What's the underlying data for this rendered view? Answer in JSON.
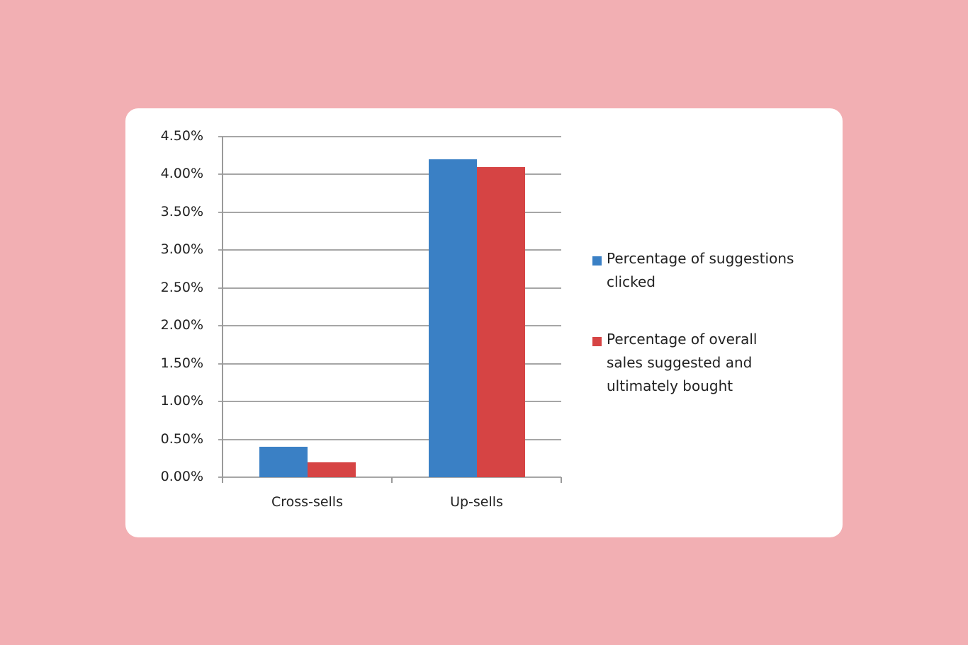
{
  "chart_data": {
    "type": "bar",
    "title": "",
    "xlabel": "",
    "ylabel": "",
    "ylim": [
      0,
      4.5
    ],
    "grid": true,
    "legend_position": "right",
    "categories": [
      "Cross-sells",
      "Up-sells"
    ],
    "y_ticks": [
      "0.00%",
      "0.50%",
      "1.00%",
      "1.50%",
      "2.00%",
      "2.50%",
      "3.00%",
      "3.50%",
      "4.00%",
      "4.50%"
    ],
    "series": [
      {
        "name": "Percentage of suggestions clicked",
        "color": "#3a80c5",
        "values": [
          0.4,
          4.2
        ]
      },
      {
        "name": "Percentage of overall sales suggested and ultimately bought",
        "color": "#d64444",
        "values": [
          0.2,
          4.1
        ]
      }
    ]
  },
  "legend": {
    "items": [
      {
        "line1": "Percentage of suggestions",
        "line2": "clicked",
        "line3": ""
      },
      {
        "line1": "Percentage of overall",
        "line2": "sales suggested and",
        "line3": "ultimately bought"
      }
    ]
  },
  "colors": {
    "background": "#f2afb3",
    "card": "#ffffff",
    "blue": "#3a80c5",
    "red": "#d64444",
    "grid": "#a6a6a6"
  }
}
